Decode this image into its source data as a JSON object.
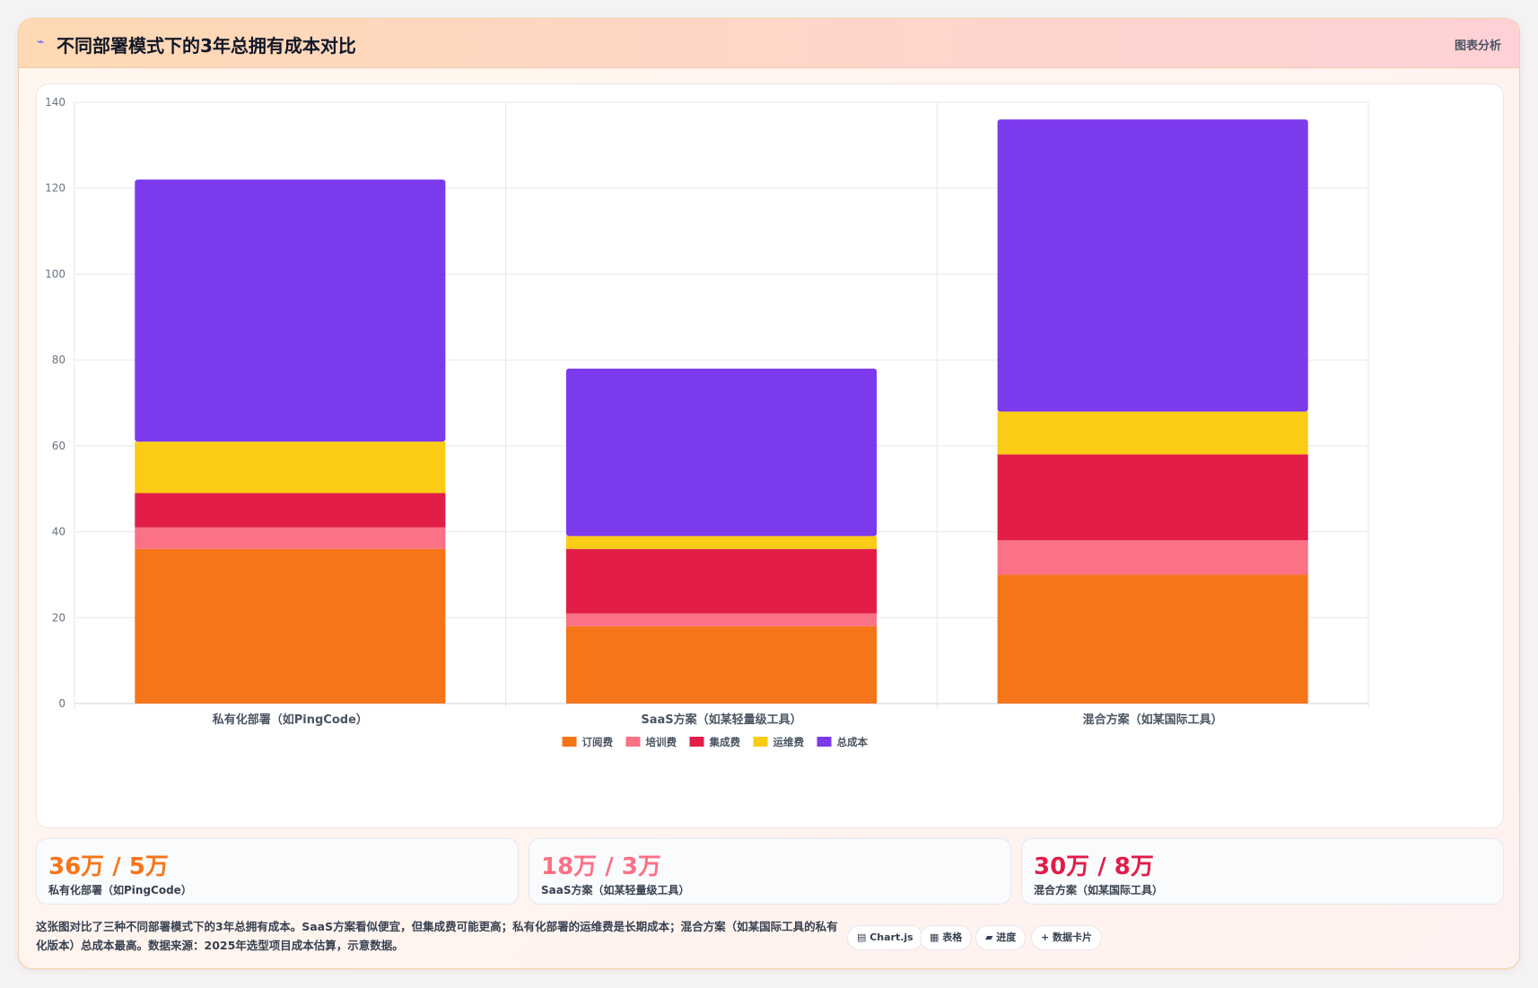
{
  "header": {
    "icon": "bolt-icon",
    "title": "不同部署模式下的3年总拥有成本对比",
    "right_label": "图表分析"
  },
  "chart_data": {
    "type": "bar",
    "stacked": true,
    "categories": [
      "私有化部署（如PingCode）",
      "SaaS方案（如某轻量级工具）",
      "混合方案（如某国际工具）"
    ],
    "series": [
      {
        "name": "订阅费",
        "color": "#f77519",
        "values": [
          36,
          18,
          30
        ]
      },
      {
        "name": "培训费",
        "color": "#fb7185",
        "values": [
          5,
          3,
          8
        ]
      },
      {
        "name": "集成费",
        "color": "#e11d48",
        "values": [
          8,
          15,
          20
        ]
      },
      {
        "name": "运维费",
        "color": "#facc15",
        "values": [
          12,
          3,
          10
        ]
      },
      {
        "name": "总成本",
        "color": "#7c3aed",
        "values": [
          61,
          39,
          68
        ]
      }
    ],
    "ylim": [
      0,
      140
    ],
    "yticks": [
      0,
      20,
      40,
      60,
      80,
      100,
      120,
      140
    ],
    "grid": true,
    "legend_position": "bottom"
  },
  "stats": [
    {
      "value": "36万 / 5万",
      "label": "私有化部署（如PingCode）",
      "color": "#f77519"
    },
    {
      "value": "18万 / 3万",
      "label": "SaaS方案（如某轻量级工具）",
      "color": "#fb7185"
    },
    {
      "value": "30万 / 8万",
      "label": "混合方案（如某国际工具）",
      "color": "#e11d48"
    }
  ],
  "footer": {
    "description": "这张图对比了三种不同部署模式下的3年总拥有成本。SaaS方案看似便宜，但集成费可能更高；私有化部署的运维费是长期成本；混合方案（如某国际工具的私有化版本）总成本最高。数据来源：2025年选型项目成本估算，示意数据。",
    "tags": [
      "▤ Chart.js",
      "▦ 表格",
      "▰ 进度",
      "+ 数据卡片"
    ]
  }
}
